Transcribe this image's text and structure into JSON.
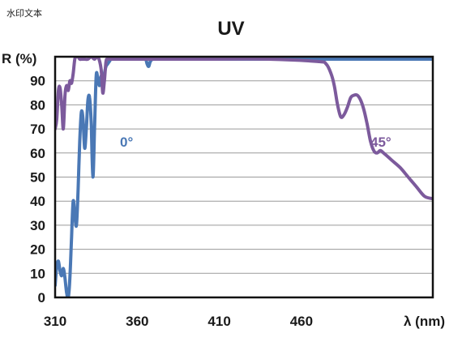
{
  "watermark": "水印文本",
  "chart_data": {
    "type": "line",
    "title": "UV",
    "xlabel": "λ (nm)",
    "ylabel": "R (%)",
    "xlim": [
      310,
      540
    ],
    "ylim": [
      0,
      100
    ],
    "xticks": [
      310,
      360,
      410,
      460
    ],
    "yticks": [
      0,
      10,
      20,
      30,
      40,
      50,
      60,
      70,
      80,
      90
    ],
    "grid": true,
    "colors": {
      "series_0": "#4a78b5",
      "series_45": "#7c5a9c",
      "grid": "#9a9a9a",
      "frame": "#111111"
    },
    "series": [
      {
        "annotation": "0°",
        "color": "#4a78b5",
        "x": [
          310,
          311,
          312,
          313,
          314,
          315,
          316,
          317,
          318,
          319,
          320,
          321,
          322,
          323,
          324,
          325,
          326,
          327,
          328,
          329,
          330,
          331,
          332,
          333,
          334,
          335,
          336,
          337,
          338,
          339,
          340,
          341,
          342,
          343,
          344,
          345,
          346,
          348,
          350,
          352,
          355,
          358,
          362,
          365,
          366,
          367,
          368,
          370,
          380,
          400,
          420,
          440,
          460,
          480,
          500,
          520,
          540
        ],
        "y": [
          5,
          13,
          15,
          11,
          9,
          12,
          8,
          2,
          0,
          8,
          25,
          40,
          34,
          30,
          45,
          65,
          77,
          74,
          62,
          70,
          82,
          83,
          72,
          50,
          70,
          92,
          91,
          88,
          92,
          89,
          93,
          96,
          97,
          98,
          99,
          99,
          99,
          99,
          99,
          99,
          99,
          99,
          99,
          99,
          97,
          96,
          98,
          99,
          99,
          99,
          99,
          99,
          99,
          99,
          99,
          99,
          99
        ]
      },
      {
        "annotation": "45°",
        "color": "#7c5a9c",
        "x": [
          310,
          311,
          312,
          313,
          314,
          315,
          316,
          317,
          318,
          319,
          320,
          321,
          322,
          323,
          324,
          325,
          326,
          328,
          330,
          332,
          334,
          336,
          338,
          339,
          340,
          341,
          342,
          344,
          348,
          360,
          400,
          440,
          470,
          475,
          478,
          480,
          482,
          484,
          486,
          488,
          490,
          492,
          494,
          496,
          498,
          500,
          502,
          504,
          506,
          508,
          510,
          515,
          520,
          525,
          530,
          535,
          540
        ],
        "y": [
          70,
          74,
          86,
          87,
          80,
          70,
          84,
          88,
          86,
          90,
          89,
          93,
          99,
          100,
          100,
          99,
          99,
          99,
          99,
          100,
          99,
          100,
          95,
          85,
          90,
          98,
          99,
          99,
          99,
          99,
          99,
          99,
          98,
          97,
          93,
          88,
          80,
          75,
          76,
          79,
          83,
          84,
          84,
          82,
          78,
          72,
          65,
          61,
          60,
          61,
          60,
          57,
          54,
          50,
          46,
          42,
          41
        ]
      }
    ]
  }
}
